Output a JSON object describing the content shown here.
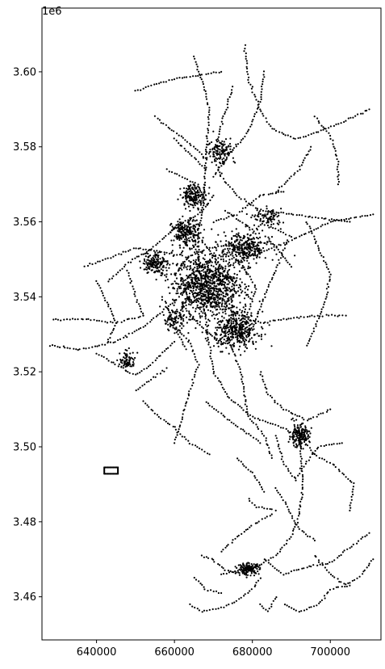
{
  "chart_data": {
    "type": "scatter",
    "title": "",
    "xlabel": "",
    "ylabel": "",
    "y_offset_label": "1e6",
    "xlim": [
      626000,
      713000
    ],
    "ylim": [
      3448500,
      3617000
    ],
    "x_ticks": [
      640000,
      660000,
      680000,
      700000
    ],
    "x_tick_labels": [
      "640000",
      "660000",
      "680000",
      "700000"
    ],
    "y_ticks": [
      3460000,
      3480000,
      3500000,
      3520000,
      3540000,
      3560000,
      3580000,
      3600000
    ],
    "y_tick_labels": [
      "3.46",
      "3.48",
      "3.50",
      "3.52",
      "3.54",
      "3.56",
      "3.58",
      "3.60"
    ],
    "grid": false,
    "marker_color": "#000000",
    "polylines": [
      [
        [
          665000,
          3604000
        ],
        [
          667000,
          3598000
        ],
        [
          669000,
          3590000
        ],
        [
          668000,
          3575000
        ],
        [
          667500,
          3565000
        ],
        [
          666000,
          3557000
        ],
        [
          666500,
          3547000
        ],
        [
          667500,
          3538000
        ],
        [
          668500,
          3530000
        ],
        [
          670000,
          3520000
        ],
        [
          674000,
          3513000
        ],
        [
          680000,
          3508000
        ],
        [
          688000,
          3505000
        ],
        [
          692000,
          3503000
        ]
      ],
      [
        [
          692000,
          3503000
        ],
        [
          693000,
          3490000
        ],
        [
          692000,
          3482000
        ],
        [
          690000,
          3476000
        ],
        [
          686000,
          3471000
        ],
        [
          681000,
          3468000
        ],
        [
          677000,
          3467000
        ],
        [
          672000,
          3466000
        ]
      ],
      [
        [
          628000,
          3527000
        ],
        [
          636000,
          3526000
        ],
        [
          645000,
          3528000
        ],
        [
          652000,
          3532000
        ],
        [
          658000,
          3537000
        ],
        [
          663000,
          3542000
        ],
        [
          668000,
          3546000
        ],
        [
          675000,
          3549000
        ],
        [
          683000,
          3552000
        ],
        [
          692000,
          3556000
        ],
        [
          700000,
          3560000
        ],
        [
          711000,
          3562000
        ]
      ],
      [
        [
          637000,
          3548000
        ],
        [
          645000,
          3551000
        ],
        [
          650000,
          3553000
        ],
        [
          656000,
          3552000
        ],
        [
          662000,
          3551000
        ]
      ],
      [
        [
          643000,
          3544000
        ],
        [
          648000,
          3549000
        ],
        [
          653000,
          3552000
        ],
        [
          660000,
          3558000
        ],
        [
          664000,
          3561000
        ]
      ],
      [
        [
          629000,
          3534000
        ],
        [
          638000,
          3534000
        ],
        [
          645000,
          3533000
        ],
        [
          652000,
          3535000
        ]
      ],
      [
        [
          640000,
          3525000
        ],
        [
          645000,
          3522000
        ],
        [
          650000,
          3519000
        ],
        [
          654000,
          3522000
        ],
        [
          660000,
          3528000
        ]
      ],
      [
        [
          650000,
          3515000
        ],
        [
          654000,
          3518000
        ],
        [
          658000,
          3521000
        ]
      ],
      [
        [
          675000,
          3596000
        ],
        [
          672000,
          3586000
        ],
        [
          670000,
          3578000
        ],
        [
          672000,
          3572000
        ],
        [
          676000,
          3567000
        ],
        [
          682000,
          3563000
        ],
        [
          690000,
          3562000
        ],
        [
          697000,
          3561000
        ],
        [
          705000,
          3560000
        ]
      ],
      [
        [
          683000,
          3600000
        ],
        [
          682000,
          3592000
        ],
        [
          679000,
          3584000
        ],
        [
          674000,
          3578000
        ],
        [
          670000,
          3572000
        ]
      ],
      [
        [
          650000,
          3595000
        ],
        [
          656000,
          3597000
        ],
        [
          660000,
          3598000
        ],
        [
          666000,
          3599000
        ],
        [
          672000,
          3600000
        ]
      ],
      [
        [
          678000,
          3607000
        ],
        [
          679000,
          3598000
        ],
        [
          682000,
          3590000
        ],
        [
          685000,
          3585000
        ],
        [
          691000,
          3582000
        ],
        [
          697000,
          3584000
        ],
        [
          704000,
          3587000
        ],
        [
          710000,
          3590000
        ]
      ],
      [
        [
          686000,
          3568000
        ],
        [
          692000,
          3574000
        ],
        [
          695000,
          3580000
        ]
      ],
      [
        [
          696000,
          3588000
        ],
        [
          700000,
          3583000
        ],
        [
          702000,
          3576000
        ],
        [
          702000,
          3570000
        ]
      ],
      [
        [
          694000,
          3560000
        ],
        [
          697000,
          3553000
        ],
        [
          700000,
          3546000
        ],
        [
          699000,
          3540000
        ],
        [
          697000,
          3534000
        ],
        [
          694000,
          3527000
        ]
      ],
      [
        [
          689000,
          3555000
        ],
        [
          686000,
          3547000
        ],
        [
          683000,
          3540000
        ],
        [
          681000,
          3534000
        ],
        [
          678000,
          3528000
        ]
      ],
      [
        [
          669000,
          3540000
        ],
        [
          675000,
          3536000
        ],
        [
          682000,
          3533000
        ],
        [
          688000,
          3534000
        ],
        [
          696000,
          3535000
        ],
        [
          704000,
          3535000
        ]
      ],
      [
        [
          670000,
          3560000
        ],
        [
          676000,
          3562000
        ],
        [
          682000,
          3567000
        ],
        [
          688000,
          3568000
        ]
      ],
      [
        [
          658000,
          3574000
        ],
        [
          662000,
          3572000
        ],
        [
          666000,
          3570000
        ],
        [
          668000,
          3566000
        ]
      ],
      [
        [
          660000,
          3582000
        ],
        [
          664000,
          3578000
        ],
        [
          668000,
          3574000
        ]
      ],
      [
        [
          655000,
          3588000
        ],
        [
          660000,
          3584000
        ],
        [
          665000,
          3580000
        ],
        [
          668000,
          3577000
        ]
      ],
      [
        [
          665000,
          3561000
        ],
        [
          668000,
          3564000
        ],
        [
          670000,
          3567000
        ]
      ],
      [
        [
          673000,
          3563000
        ],
        [
          677000,
          3560000
        ],
        [
          680000,
          3558000
        ]
      ],
      [
        [
          660000,
          3532000
        ],
        [
          664000,
          3528000
        ],
        [
          666000,
          3522000
        ],
        [
          664000,
          3515000
        ],
        [
          662000,
          3508000
        ],
        [
          660000,
          3501000
        ]
      ],
      [
        [
          672000,
          3532000
        ],
        [
          675000,
          3526000
        ],
        [
          677000,
          3520000
        ],
        [
          678000,
          3514000
        ],
        [
          679000,
          3508000
        ],
        [
          683000,
          3503000
        ],
        [
          685000,
          3497000
        ]
      ],
      [
        [
          682000,
          3520000
        ],
        [
          684000,
          3514000
        ],
        [
          688000,
          3510000
        ],
        [
          694000,
          3507000
        ],
        [
          700000,
          3510000
        ]
      ],
      [
        [
          652000,
          3512000
        ],
        [
          656000,
          3508000
        ],
        [
          660000,
          3505000
        ],
        [
          664000,
          3501000
        ],
        [
          669000,
          3498000
        ]
      ],
      [
        [
          668000,
          3512000
        ],
        [
          673000,
          3508000
        ],
        [
          678000,
          3504000
        ],
        [
          682000,
          3501000
        ]
      ],
      [
        [
          686000,
          3503000
        ],
        [
          688000,
          3496000
        ],
        [
          691000,
          3491000
        ],
        [
          694000,
          3496000
        ],
        [
          697000,
          3500000
        ],
        [
          703000,
          3501000
        ]
      ],
      [
        [
          692000,
          3503000
        ],
        [
          696000,
          3498000
        ],
        [
          701000,
          3495000
        ],
        [
          706000,
          3490000
        ],
        [
          705000,
          3483000
        ]
      ],
      [
        [
          686000,
          3489000
        ],
        [
          689000,
          3484000
        ],
        [
          692000,
          3478000
        ],
        [
          696000,
          3475000
        ]
      ],
      [
        [
          696000,
          3471000
        ],
        [
          700000,
          3466000
        ],
        [
          704000,
          3463000
        ],
        [
          708000,
          3466000
        ],
        [
          711000,
          3470000
        ]
      ],
      [
        [
          683000,
          3470000
        ],
        [
          688000,
          3466000
        ],
        [
          694000,
          3468000
        ],
        [
          700000,
          3469000
        ],
        [
          706000,
          3474000
        ],
        [
          710000,
          3477000
        ]
      ],
      [
        [
          682000,
          3465000
        ],
        [
          680000,
          3462000
        ],
        [
          676000,
          3459000
        ],
        [
          672000,
          3457000
        ],
        [
          667000,
          3456000
        ],
        [
          664000,
          3458000
        ]
      ],
      [
        [
          667000,
          3471000
        ],
        [
          670000,
          3470000
        ],
        [
          673000,
          3467000
        ],
        [
          678000,
          3466000
        ]
      ],
      [
        [
          665000,
          3465000
        ],
        [
          668000,
          3462000
        ],
        [
          672000,
          3461000
        ]
      ],
      [
        [
          688000,
          3458000
        ],
        [
          692000,
          3456000
        ],
        [
          697000,
          3458000
        ],
        [
          700000,
          3462000
        ],
        [
          705000,
          3463000
        ]
      ],
      [
        [
          686000,
          3460000
        ],
        [
          684000,
          3456000
        ],
        [
          682000,
          3458000
        ]
      ],
      [
        [
          672000,
          3472000
        ],
        [
          676000,
          3476000
        ],
        [
          680000,
          3479000
        ],
        [
          685000,
          3482000
        ]
      ],
      [
        [
          679000,
          3486000
        ],
        [
          681000,
          3484000
        ],
        [
          686000,
          3483000
        ]
      ],
      [
        [
          676000,
          3497000
        ],
        [
          680000,
          3493000
        ],
        [
          683000,
          3488000
        ]
      ],
      [
        [
          640000,
          3544000
        ],
        [
          643000,
          3538000
        ],
        [
          645000,
          3533000
        ],
        [
          643000,
          3528000
        ]
      ],
      [
        [
          648000,
          3547000
        ],
        [
          650000,
          3540000
        ],
        [
          652000,
          3535000
        ]
      ],
      [
        [
          657000,
          3540000
        ],
        [
          659000,
          3535000
        ],
        [
          661000,
          3530000
        ],
        [
          663000,
          3526000
        ]
      ],
      [
        [
          660000,
          3546000
        ],
        [
          664000,
          3551000
        ],
        [
          669000,
          3553000
        ],
        [
          674000,
          3554000
        ],
        [
          678000,
          3552000
        ]
      ],
      [
        [
          665000,
          3545000
        ],
        [
          668000,
          3542000
        ],
        [
          671000,
          3540000
        ],
        [
          674000,
          3538000
        ],
        [
          678000,
          3536000
        ]
      ],
      [
        [
          662000,
          3538000
        ],
        [
          665000,
          3534000
        ],
        [
          668000,
          3531000
        ],
        [
          672000,
          3528000
        ]
      ],
      [
        [
          663000,
          3550000
        ],
        [
          667000,
          3548000
        ],
        [
          671000,
          3546000
        ],
        [
          676000,
          3545000
        ]
      ],
      [
        [
          667000,
          3555000
        ],
        [
          670000,
          3551000
        ],
        [
          673000,
          3547000
        ],
        [
          676000,
          3543000
        ],
        [
          679000,
          3540000
        ]
      ],
      [
        [
          676000,
          3550000
        ],
        [
          679000,
          3546000
        ],
        [
          681000,
          3542000
        ],
        [
          679000,
          3536000
        ],
        [
          676000,
          3531000
        ]
      ],
      [
        [
          684000,
          3556000
        ],
        [
          687000,
          3552000
        ],
        [
          690000,
          3548000
        ]
      ],
      [
        [
          682000,
          3560000
        ],
        [
          686000,
          3558000
        ],
        [
          690000,
          3556000
        ]
      ]
    ],
    "clusters": [
      {
        "x": 668000,
        "y": 3543000,
        "sx": 4200,
        "sy": 4200,
        "n": 900
      },
      {
        "x": 676000,
        "y": 3531000,
        "sx": 2800,
        "sy": 2400,
        "n": 380
      },
      {
        "x": 678000,
        "y": 3553000,
        "sx": 3000,
        "sy": 2200,
        "n": 320
      },
      {
        "x": 663000,
        "y": 3557000,
        "sx": 1800,
        "sy": 1800,
        "n": 220
      },
      {
        "x": 665000,
        "y": 3567000,
        "sx": 1600,
        "sy": 1500,
        "n": 180
      },
      {
        "x": 655000,
        "y": 3549000,
        "sx": 1600,
        "sy": 1500,
        "n": 160
      },
      {
        "x": 692000,
        "y": 3503000,
        "sx": 1300,
        "sy": 1500,
        "n": 180
      },
      {
        "x": 679000,
        "y": 3467500,
        "sx": 1400,
        "sy": 700,
        "n": 150
      },
      {
        "x": 672000,
        "y": 3579000,
        "sx": 1800,
        "sy": 1800,
        "n": 120
      },
      {
        "x": 648000,
        "y": 3523000,
        "sx": 1000,
        "sy": 1200,
        "n": 80
      },
      {
        "x": 684000,
        "y": 3561000,
        "sx": 1800,
        "sy": 1200,
        "n": 90
      },
      {
        "x": 660000,
        "y": 3534000,
        "sx": 1500,
        "sy": 1500,
        "n": 90
      }
    ],
    "boxes": [
      {
        "x0": 642000,
        "x1": 645500,
        "y0": 3492800,
        "y1": 3494500
      }
    ]
  }
}
